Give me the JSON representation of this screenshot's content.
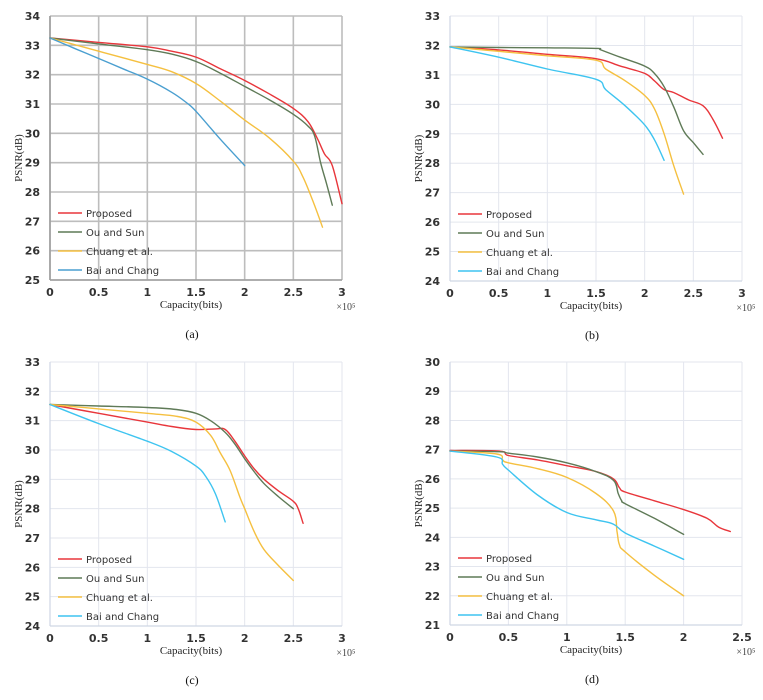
{
  "chart_data": [
    {
      "type": "line",
      "panel": "a",
      "caption": "(a)",
      "xlabel": "Capacity(bits)",
      "ylabel": "PSNR(dB)",
      "x_multiplier": "×10⁵",
      "xlim": [
        0,
        3
      ],
      "ylim": [
        25,
        34
      ],
      "xticks": [
        "0",
        "0.5",
        "1",
        "1.5",
        "2",
        "2.5",
        "3"
      ],
      "yticks": [
        "25",
        "26",
        "27",
        "28",
        "29",
        "30",
        "31",
        "32",
        "33",
        "34"
      ],
      "grid": "heavy",
      "legend": "bottom-left",
      "series": [
        {
          "name": "Proposed",
          "color": "#e8363b",
          "x": [
            0,
            0.5,
            1.0,
            1.25,
            1.5,
            1.75,
            2.0,
            2.25,
            2.5,
            2.65,
            2.75,
            2.82,
            2.9,
            3.0
          ],
          "y": [
            33.25,
            33.1,
            32.95,
            32.8,
            32.6,
            32.2,
            31.8,
            31.35,
            30.85,
            30.4,
            29.8,
            29.3,
            28.9,
            27.6
          ]
        },
        {
          "name": "Ou and Sun",
          "color": "#5f7a57",
          "x": [
            0,
            0.5,
            1.0,
            1.25,
            1.5,
            1.75,
            2.0,
            2.25,
            2.5,
            2.65,
            2.72,
            2.78,
            2.84,
            2.9
          ],
          "y": [
            33.25,
            33.05,
            32.85,
            32.7,
            32.45,
            32.05,
            31.6,
            31.15,
            30.65,
            30.25,
            29.9,
            29.0,
            28.3,
            27.55
          ]
        },
        {
          "name": "Chuang et al.",
          "color": "#f5c040",
          "x": [
            0,
            0.5,
            1.0,
            1.25,
            1.5,
            1.75,
            2.0,
            2.25,
            2.5,
            2.6,
            2.7,
            2.8
          ],
          "y": [
            33.25,
            32.8,
            32.35,
            32.1,
            31.7,
            31.1,
            30.45,
            29.85,
            29.05,
            28.5,
            27.7,
            26.8
          ]
        },
        {
          "name": "Bai and Chang",
          "color": "#4a9fd0",
          "x": [
            0,
            0.25,
            0.5,
            0.75,
            1.0,
            1.25,
            1.4,
            1.5,
            1.75,
            2.0
          ],
          "y": [
            33.25,
            32.9,
            32.55,
            32.2,
            31.85,
            31.4,
            31.05,
            30.75,
            29.8,
            28.9
          ]
        }
      ]
    },
    {
      "type": "line",
      "panel": "b",
      "caption": "(b)",
      "xlabel": "Capacity(bits)",
      "ylabel": "PSNR(dB)",
      "x_multiplier": "×10⁵",
      "xlim": [
        0,
        3
      ],
      "ylim": [
        24,
        33
      ],
      "xticks": [
        "0",
        "0.5",
        "1",
        "1.5",
        "2",
        "2.5",
        "3"
      ],
      "yticks": [
        "24",
        "25",
        "26",
        "27",
        "28",
        "29",
        "30",
        "31",
        "32",
        "33"
      ],
      "grid": "light",
      "legend": "bottom-left",
      "series": [
        {
          "name": "Proposed",
          "color": "#e8363b",
          "x": [
            0,
            0.5,
            1.0,
            1.5,
            1.75,
            2.0,
            2.1,
            2.2,
            2.3,
            2.45,
            2.6,
            2.7,
            2.8
          ],
          "y": [
            31.95,
            31.85,
            31.7,
            31.55,
            31.3,
            31.05,
            30.8,
            30.5,
            30.4,
            30.15,
            29.95,
            29.5,
            28.85
          ]
        },
        {
          "name": "Ou and Sun",
          "color": "#5f7a57",
          "x": [
            0,
            0.5,
            1.0,
            1.5,
            1.55,
            1.75,
            2.0,
            2.1,
            2.2,
            2.3,
            2.4,
            2.5,
            2.6
          ],
          "y": [
            31.95,
            31.93,
            31.92,
            31.9,
            31.85,
            31.6,
            31.3,
            31.05,
            30.6,
            29.9,
            29.1,
            28.7,
            28.3
          ]
        },
        {
          "name": "Chuang et al.",
          "color": "#f5c040",
          "x": [
            0,
            0.5,
            1.0,
            1.5,
            1.6,
            1.8,
            2.0,
            2.1,
            2.2,
            2.3,
            2.4
          ],
          "y": [
            31.95,
            31.8,
            31.65,
            31.5,
            31.2,
            30.8,
            30.3,
            29.85,
            29.0,
            27.9,
            26.95
          ]
        },
        {
          "name": "Bai and Chang",
          "color": "#3ec4f0",
          "x": [
            0,
            0.5,
            1.0,
            1.5,
            1.6,
            1.8,
            2.0,
            2.1,
            2.2
          ],
          "y": [
            31.95,
            31.6,
            31.2,
            30.85,
            30.5,
            29.95,
            29.3,
            28.8,
            28.1
          ]
        }
      ]
    },
    {
      "type": "line",
      "panel": "c",
      "caption": "(c)",
      "xlabel": "Capacity(bits)",
      "ylabel": "PSNR(dB)",
      "x_multiplier": "×10⁵",
      "xlim": [
        0,
        3
      ],
      "ylim": [
        24,
        33
      ],
      "xticks": [
        "0",
        "0.5",
        "1",
        "1.5",
        "2",
        "2.5",
        "3"
      ],
      "yticks": [
        "24",
        "25",
        "26",
        "27",
        "28",
        "29",
        "30",
        "31",
        "32",
        "33"
      ],
      "grid": "light",
      "legend": "bottom-left",
      "series": [
        {
          "name": "Proposed",
          "color": "#e8363b",
          "x": [
            0,
            0.5,
            1.0,
            1.25,
            1.5,
            1.7,
            1.8,
            1.9,
            2.0,
            2.1,
            2.2,
            2.35,
            2.5,
            2.55,
            2.6
          ],
          "y": [
            31.55,
            31.25,
            30.95,
            30.8,
            30.7,
            30.72,
            30.7,
            30.3,
            29.8,
            29.35,
            29.0,
            28.6,
            28.25,
            28.0,
            27.5
          ]
        },
        {
          "name": "Ou and Sun",
          "color": "#5f7a57",
          "x": [
            0,
            0.5,
            1.0,
            1.3,
            1.5,
            1.65,
            1.8,
            1.9,
            2.0,
            2.1,
            2.2,
            2.35,
            2.5
          ],
          "y": [
            31.55,
            31.5,
            31.45,
            31.38,
            31.25,
            31.0,
            30.6,
            30.2,
            29.7,
            29.25,
            28.85,
            28.4,
            28.0
          ]
        },
        {
          "name": "Chuang et al.",
          "color": "#f5c040",
          "x": [
            0,
            0.5,
            1.0,
            1.3,
            1.5,
            1.65,
            1.75,
            1.85,
            1.95,
            2.0,
            2.1,
            2.2,
            2.35,
            2.5
          ],
          "y": [
            31.55,
            31.4,
            31.25,
            31.15,
            30.95,
            30.5,
            29.9,
            29.3,
            28.4,
            28.0,
            27.2,
            26.6,
            26.05,
            25.55
          ]
        },
        {
          "name": "Bai and Chang",
          "color": "#3ec4f0",
          "x": [
            0,
            0.5,
            1.0,
            1.25,
            1.5,
            1.6,
            1.7,
            1.8
          ],
          "y": [
            31.55,
            30.9,
            30.3,
            29.95,
            29.45,
            29.1,
            28.5,
            27.55
          ]
        }
      ]
    },
    {
      "type": "line",
      "panel": "d",
      "caption": "(d)",
      "xlabel": "Capacity(bits)",
      "ylabel": "PSNR(dB)",
      "x_multiplier": "×10⁵",
      "xlim": [
        0,
        2.5
      ],
      "ylim": [
        21,
        30
      ],
      "xticks": [
        "0",
        "0.5",
        "1",
        "1.5",
        "2",
        "2.5"
      ],
      "yticks": [
        "21",
        "22",
        "23",
        "24",
        "25",
        "26",
        "27",
        "28",
        "29",
        "30"
      ],
      "grid": "light",
      "legend": "bottom-left",
      "series": [
        {
          "name": "Proposed",
          "color": "#e8363b",
          "x": [
            0,
            0.42,
            0.5,
            0.75,
            1.0,
            1.25,
            1.4,
            1.45,
            1.5,
            1.75,
            2.0,
            2.2,
            2.3,
            2.4
          ],
          "y": [
            26.97,
            26.95,
            26.8,
            26.65,
            26.45,
            26.25,
            26.0,
            25.7,
            25.55,
            25.25,
            24.95,
            24.65,
            24.35,
            24.2
          ]
        },
        {
          "name": "Ou and Sun",
          "color": "#5f7a57",
          "x": [
            0,
            0.42,
            0.5,
            0.75,
            1.0,
            1.25,
            1.4,
            1.44,
            1.47,
            1.5,
            1.75,
            2.0
          ],
          "y": [
            26.95,
            26.93,
            26.88,
            26.75,
            26.55,
            26.25,
            25.95,
            25.5,
            25.25,
            25.15,
            24.65,
            24.1
          ]
        },
        {
          "name": "Chuang et al.",
          "color": "#f5c040",
          "x": [
            0,
            0.4,
            0.45,
            0.5,
            0.75,
            1.0,
            1.25,
            1.4,
            1.43,
            1.45,
            1.5,
            1.75,
            2.0
          ],
          "y": [
            26.95,
            26.85,
            26.65,
            26.55,
            26.35,
            26.05,
            25.5,
            24.9,
            24.2,
            23.75,
            23.5,
            22.7,
            22.0
          ]
        },
        {
          "name": "Bai and Chang",
          "color": "#3ec4f0",
          "x": [
            0,
            0.4,
            0.45,
            0.5,
            0.75,
            1.0,
            1.25,
            1.4,
            1.5,
            1.75,
            2.0
          ],
          "y": [
            26.95,
            26.75,
            26.5,
            26.3,
            25.45,
            24.85,
            24.6,
            24.45,
            24.15,
            23.7,
            23.25
          ]
        }
      ]
    }
  ]
}
